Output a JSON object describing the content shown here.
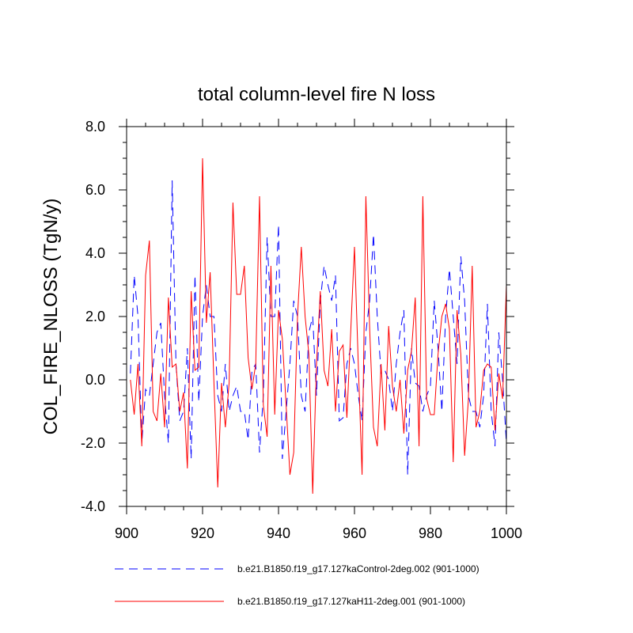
{
  "chart_data": {
    "type": "line",
    "title": "total column-level fire N loss",
    "xlabel": "",
    "ylabel": "COL_FIRE_NLOSS  (TgN/y)",
    "xlim": [
      900,
      1000
    ],
    "ylim": [
      -4.0,
      8.0
    ],
    "xticks": [
      900,
      920,
      940,
      960,
      980,
      1000
    ],
    "xtick_labels": [
      "900",
      "920",
      "940",
      "960",
      "980",
      "1000"
    ],
    "yticks": [
      -4.0,
      -2.0,
      0.0,
      2.0,
      4.0,
      6.0,
      8.0
    ],
    "ytick_labels": [
      "-4.0",
      "-2.0",
      "0.0",
      "2.0",
      "4.0",
      "6.0",
      "8.0"
    ],
    "legend_position": "bottom",
    "x": [
      901,
      902,
      903,
      904,
      905,
      906,
      907,
      908,
      909,
      910,
      911,
      912,
      913,
      914,
      915,
      916,
      917,
      918,
      919,
      920,
      921,
      922,
      923,
      924,
      925,
      926,
      927,
      928,
      929,
      930,
      931,
      932,
      933,
      934,
      935,
      936,
      937,
      938,
      939,
      940,
      941,
      942,
      943,
      944,
      945,
      946,
      947,
      948,
      949,
      950,
      951,
      952,
      953,
      954,
      955,
      956,
      957,
      958,
      959,
      960,
      961,
      962,
      963,
      964,
      965,
      966,
      967,
      968,
      969,
      970,
      971,
      972,
      973,
      974,
      975,
      976,
      977,
      978,
      979,
      980,
      981,
      982,
      983,
      984,
      985,
      986,
      987,
      988,
      989,
      990,
      991,
      992,
      993,
      994,
      995,
      996,
      997,
      998,
      999,
      1000
    ],
    "series": [
      {
        "name": "b.e21.B1850.f19_g17.127kaControl-2deg.002 (901-1000)",
        "color": "#0000ff",
        "style": "dashed",
        "values": [
          0.2,
          3.3,
          2.0,
          -2.0,
          -0.3,
          -0.5,
          0.5,
          1.5,
          1.8,
          -0.5,
          -2.0,
          6.3,
          0.5,
          -1.3,
          -1.0,
          1.0,
          -2.5,
          3.3,
          -0.7,
          2.0,
          3.0,
          2.0,
          2.0,
          -0.5,
          -1.0,
          0.5,
          -1.0,
          -0.5,
          -0.2,
          -1.0,
          -1.0,
          -1.9,
          0.3,
          0.5,
          -2.3,
          -0.5,
          4.5,
          2.0,
          2.0,
          4.9,
          -2.5,
          -1.0,
          0.5,
          2.5,
          2.0,
          -0.5,
          -1.0,
          1.5,
          2.0,
          -0.5,
          2.5,
          3.6,
          3.0,
          2.5,
          3.3,
          -1.3,
          -1.2,
          0.5,
          1.0,
          0.5,
          -0.5,
          -1.3,
          1.5,
          2.5,
          4.6,
          2.0,
          0.2,
          0.3,
          0.0,
          -1.0,
          0.5,
          1.5,
          2.2,
          -3.0,
          1.0,
          -0.1,
          -0.2,
          -1.0,
          -0.5,
          -0.2,
          2.5,
          1.0,
          -1.0,
          2.0,
          3.5,
          2.0,
          0.5,
          3.9,
          2.5,
          -0.5,
          -1.0,
          -1.0,
          -1.5,
          -0.5,
          2.4,
          -1.0,
          -2.1,
          1.5,
          0.0,
          -2.0
        ]
      },
      {
        "name": "b.e21.B1850.f19_g17.127kaH11-2deg.001 (901-1000)",
        "color": "#ff0000",
        "style": "solid",
        "values": [
          0.0,
          -1.1,
          0.5,
          -2.1,
          3.3,
          4.4,
          -1.0,
          -1.3,
          0.2,
          -1.5,
          2.6,
          0.4,
          0.5,
          -1.0,
          -0.4,
          -2.8,
          2.8,
          0.3,
          0.4,
          7.0,
          1.8,
          3.4,
          -0.1,
          -3.4,
          -0.1,
          -1.5,
          -0.1,
          5.6,
          2.7,
          2.7,
          3.6,
          0.7,
          -0.3,
          0.5,
          5.8,
          -0.8,
          -1.8,
          3.6,
          -1.1,
          2.2,
          1.3,
          -0.8,
          -3.0,
          -2.3,
          2.0,
          4.2,
          2.0,
          0.8,
          -3.6,
          0.5,
          2.8,
          0.3,
          -0.2,
          1.6,
          -1.0,
          0.9,
          1.1,
          -1.2,
          1.5,
          4.2,
          0.5,
          -3.0,
          5.8,
          1.6,
          -1.5,
          -2.1,
          0.5,
          -1.6,
          1.7,
          -0.2,
          -1.0,
          0.0,
          -1.7,
          0.3,
          0.9,
          2.6,
          -2.1,
          5.8,
          -0.6,
          -1.1,
          -1.1,
          0.8,
          2.0,
          2.4,
          1.6,
          -2.6,
          2.2,
          0.8,
          -2.4,
          -0.6,
          3.6,
          -1.5,
          -1.0,
          0.3,
          0.5,
          0.4,
          -1.6,
          0.2,
          -0.6,
          3.0
        ]
      }
    ]
  }
}
